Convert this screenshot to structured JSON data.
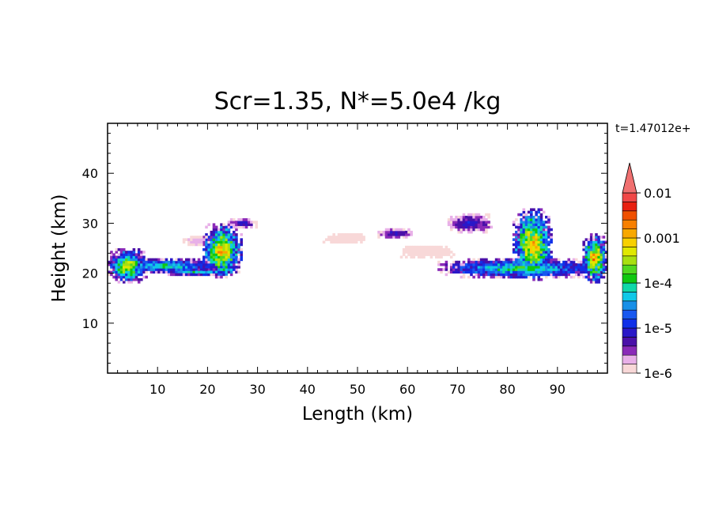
{
  "chart_data": {
    "type": "heatmap",
    "title": "Scr=1.35, N*=5.0e4 /kg",
    "time_label": "t=1.47012e+",
    "xlabel": "Length  (km)",
    "ylabel": "Height  (km)",
    "xlim": [
      0,
      100
    ],
    "ylim": [
      0,
      50
    ],
    "xticks": [
      10,
      20,
      30,
      40,
      50,
      60,
      70,
      80,
      90
    ],
    "yticks": [
      10,
      20,
      30,
      40
    ],
    "grid": false,
    "colorbar": {
      "position": "right",
      "scale": "log",
      "labels": [
        "0.01",
        "0.001",
        "1e-4",
        "1e-5",
        "1e-6"
      ],
      "label_values": [
        0.01,
        0.001,
        0.0001,
        1e-05,
        1e-06
      ],
      "extend": "max",
      "levels": [
        {
          "log10": -6.0,
          "color": "#f8d8d8"
        },
        {
          "log10": -5.8,
          "color": "#e8b0e8"
        },
        {
          "log10": -5.6,
          "color": "#8a2ab8"
        },
        {
          "log10": -5.4,
          "color": "#4a10a8"
        },
        {
          "log10": -5.2,
          "color": "#2a18c8"
        },
        {
          "log10": -5.0,
          "color": "#1030e8"
        },
        {
          "log10": -4.8,
          "color": "#1858f0"
        },
        {
          "log10": -4.6,
          "color": "#1890e8"
        },
        {
          "log10": -4.4,
          "color": "#10c8e8"
        },
        {
          "log10": -4.2,
          "color": "#10d8a8"
        },
        {
          "log10": -4.0,
          "color": "#10c810"
        },
        {
          "log10": -3.8,
          "color": "#50d820"
        },
        {
          "log10": -3.6,
          "color": "#a8e010"
        },
        {
          "log10": -3.4,
          "color": "#e0e800"
        },
        {
          "log10": -3.2,
          "color": "#f8d000"
        },
        {
          "log10": -3.0,
          "color": "#f8a800"
        },
        {
          "log10": -2.8,
          "color": "#f88000"
        },
        {
          "log10": -2.6,
          "color": "#f05000"
        },
        {
          "log10": -2.4,
          "color": "#e82010"
        },
        {
          "log10": -2.2,
          "color": "#f04848"
        },
        {
          "log10": -2.0,
          "color": "#f07070"
        }
      ]
    },
    "regions": [
      {
        "name": "left-cloud-sheet",
        "x": [
          0,
          8
        ],
        "y": [
          18,
          25
        ],
        "max_log10": -3.2
      },
      {
        "name": "left-anvil-layer",
        "x": [
          0,
          23
        ],
        "y": [
          20,
          23
        ],
        "max_log10": -4.0
      },
      {
        "name": "left-lower-layer",
        "x": [
          10,
          26
        ],
        "y": [
          19.5,
          21
        ],
        "max_log10": -4.0
      },
      {
        "name": "left-tower",
        "x": [
          19,
          27
        ],
        "y": [
          19,
          30
        ],
        "max_log10": -2.8
      },
      {
        "name": "left-top-patch",
        "x": [
          24,
          30
        ],
        "y": [
          29,
          31
        ],
        "max_log10": -5.0
      },
      {
        "name": "left-small-patch",
        "x": [
          15,
          22
        ],
        "y": [
          25.5,
          27.5
        ],
        "max_log10": -5.6
      },
      {
        "name": "center-faint-patch",
        "x": [
          43,
          52
        ],
        "y": [
          26,
          28
        ],
        "max_log10": -6.0
      },
      {
        "name": "center-blue-patch",
        "x": [
          54,
          61
        ],
        "y": [
          27,
          29
        ],
        "max_log10": -5.0
      },
      {
        "name": "center-faint-layer",
        "x": [
          58,
          70
        ],
        "y": [
          23,
          25.5
        ],
        "max_log10": -6.0
      },
      {
        "name": "right-top-patches",
        "x": [
          68,
          77
        ],
        "y": [
          28,
          32
        ],
        "max_log10": -5.0
      },
      {
        "name": "right-anvil-layer",
        "x": [
          66,
          99
        ],
        "y": [
          19,
          23
        ],
        "max_log10": -3.8
      },
      {
        "name": "right-tower",
        "x": [
          81,
          89
        ],
        "y": [
          18.5,
          33
        ],
        "max_log10": -2.8
      },
      {
        "name": "right-edge-tower",
        "x": [
          95,
          100
        ],
        "y": [
          18,
          28
        ],
        "max_log10": -2.8
      }
    ]
  }
}
